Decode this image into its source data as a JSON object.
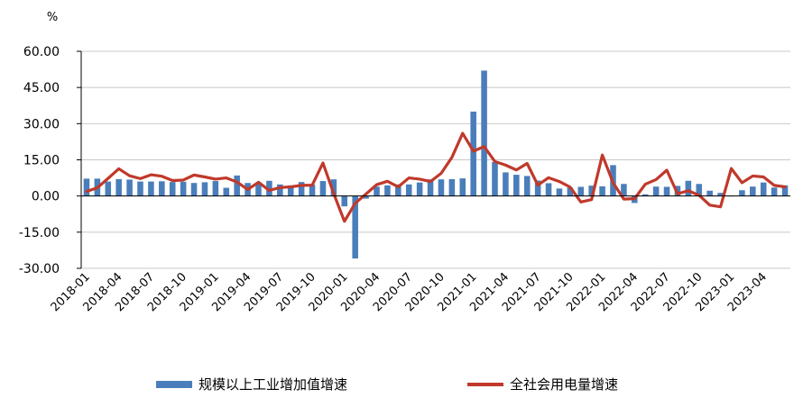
{
  "chart_data": {
    "type": "bar",
    "ylabel": "%",
    "ylim": [
      -30,
      60
    ],
    "yticks": [
      "60.00",
      "45.00",
      "30.00",
      "15.00",
      "0.00",
      "-15.00",
      "-30.00"
    ],
    "x_tick_labels": [
      "2018-01",
      "2018-04",
      "2018-07",
      "2018-10",
      "2019-01",
      "2019-04",
      "2019-07",
      "2019-10",
      "2020-01",
      "2020-04",
      "2020-07",
      "2020-10",
      "2021-01",
      "2021-04",
      "2021-07",
      "2021-10",
      "2022-01",
      "2022-04",
      "2022-07",
      "2022-10",
      "2023-01",
      "2023-04"
    ],
    "categories": [
      "2018-01",
      "2018-02",
      "2018-03",
      "2018-04",
      "2018-05",
      "2018-06",
      "2018-07",
      "2018-08",
      "2018-09",
      "2018-10",
      "2018-11",
      "2018-12",
      "2019-01",
      "2019-02",
      "2019-03",
      "2019-04",
      "2019-05",
      "2019-06",
      "2019-07",
      "2019-08",
      "2019-09",
      "2019-10",
      "2019-11",
      "2019-12",
      "2020-01",
      "2020-02",
      "2020-03",
      "2020-04",
      "2020-05",
      "2020-06",
      "2020-07",
      "2020-08",
      "2020-09",
      "2020-10",
      "2020-11",
      "2020-12",
      "2021-01",
      "2021-02",
      "2021-03",
      "2021-04",
      "2021-05",
      "2021-06",
      "2021-07",
      "2021-08",
      "2021-09",
      "2021-10",
      "2021-11",
      "2021-12",
      "2022-01",
      "2022-02",
      "2022-03",
      "2022-04",
      "2022-05",
      "2022-06",
      "2022-07",
      "2022-08",
      "2022-09",
      "2022-10",
      "2022-11",
      "2022-12",
      "2023-01",
      "2023-02",
      "2023-03",
      "2023-04",
      "2023-05",
      "2023-06"
    ],
    "series": [
      {
        "name": "规模以上工业增加值增速",
        "type": "bar",
        "color": "#4a7ebb",
        "values": [
          7.2,
          7.2,
          6.0,
          7.0,
          6.8,
          6.0,
          6.0,
          6.1,
          5.8,
          5.9,
          5.4,
          5.7,
          6.2,
          3.4,
          8.5,
          5.4,
          5.0,
          6.3,
          4.8,
          4.4,
          5.8,
          4.7,
          6.2,
          6.9,
          -4.3,
          -25.9,
          -1.1,
          3.9,
          4.4,
          4.8,
          4.8,
          5.6,
          6.9,
          6.9,
          7.0,
          7.3,
          35.0,
          52.0,
          14.1,
          9.8,
          8.8,
          8.3,
          6.4,
          5.3,
          3.1,
          3.5,
          3.8,
          4.3,
          4.0,
          12.8,
          5.0,
          -2.9,
          0.7,
          3.9,
          3.8,
          4.2,
          6.3,
          5.0,
          2.2,
          1.3,
          0.0,
          2.4,
          3.9,
          5.6,
          3.5,
          4.4
        ]
      },
      {
        "name": "全社会用电量增速",
        "type": "line",
        "color": "#c0392b",
        "values": [
          1.9,
          3.4,
          7.3,
          11.3,
          8.4,
          7.2,
          8.8,
          8.2,
          6.4,
          6.6,
          8.7,
          7.9,
          7.0,
          7.5,
          5.8,
          2.7,
          5.7,
          2.3,
          3.5,
          3.8,
          4.4,
          4.5,
          13.7,
          1.0,
          -10.5,
          -3.0,
          0.8,
          4.7,
          6.1,
          3.8,
          7.5,
          7.0,
          6.0,
          9.4,
          16.0,
          26.0,
          18.6,
          20.5,
          14.3,
          12.8,
          10.8,
          13.5,
          4.5,
          7.6,
          6.0,
          3.7,
          -2.5,
          -1.5,
          17.0,
          5.5,
          -1.3,
          -1.1,
          4.9,
          6.8,
          10.7,
          0.9,
          2.2,
          0.3,
          -3.8,
          -4.5,
          11.4,
          5.5,
          8.3,
          7.9,
          4.4,
          3.8
        ]
      }
    ],
    "legend": {
      "placement": "bottom",
      "items": [
        {
          "label": "规模以上工业增加值增速",
          "color": "#4a7ebb"
        },
        {
          "label": "全社会用电量增速",
          "color": "#c0392b"
        }
      ]
    },
    "grid": "horizontal"
  }
}
